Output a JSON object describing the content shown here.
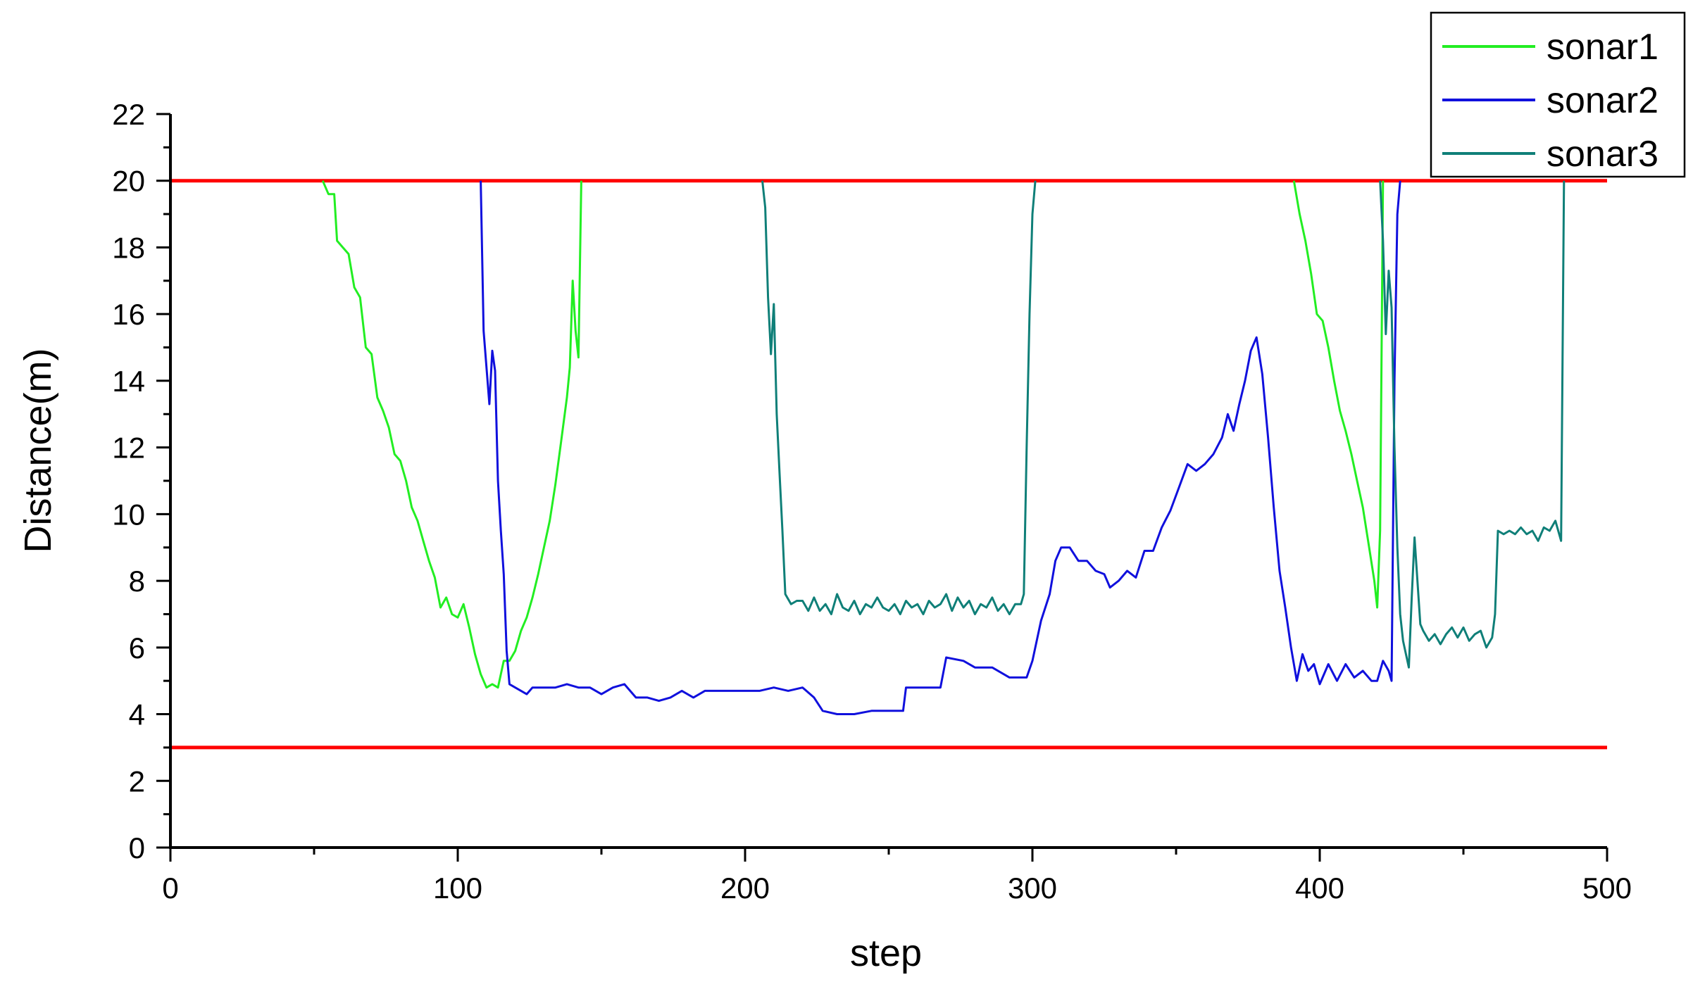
{
  "chart_data": {
    "type": "line",
    "title": "",
    "xlabel": "step",
    "ylabel": "Distance(m)",
    "xlim": [
      0,
      500
    ],
    "ylim": [
      0,
      22
    ],
    "xticks": [
      0,
      100,
      200,
      300,
      400,
      500
    ],
    "yticks": [
      0,
      2,
      4,
      6,
      8,
      10,
      12,
      14,
      16,
      18,
      20,
      22
    ],
    "grid": false,
    "legend_position": "top-right",
    "colors": {
      "sonar1": "#22ee22",
      "sonar2": "#1010dd",
      "sonar3": "#0f7f78",
      "threshold": "#ff0000"
    },
    "reference_lines": [
      {
        "y": 20,
        "color": "#ff0000"
      },
      {
        "y": 3,
        "color": "#ff0000"
      }
    ],
    "series": [
      {
        "name": "sonar1",
        "segments": [
          [
            [
              53,
              20
            ],
            [
              55,
              19.6
            ],
            [
              57,
              19.6
            ],
            [
              58,
              18.2
            ],
            [
              60,
              18.0
            ],
            [
              62,
              17.8
            ],
            [
              64,
              16.8
            ],
            [
              66,
              16.5
            ],
            [
              68,
              15.0
            ],
            [
              70,
              14.8
            ],
            [
              72,
              13.5
            ],
            [
              74,
              13.1
            ],
            [
              76,
              12.6
            ],
            [
              78,
              11.8
            ],
            [
              80,
              11.6
            ],
            [
              82,
              11.0
            ],
            [
              84,
              10.2
            ],
            [
              86,
              9.8
            ],
            [
              88,
              9.2
            ],
            [
              90,
              8.6
            ],
            [
              92,
              8.1
            ],
            [
              94,
              7.2
            ],
            [
              96,
              7.5
            ],
            [
              98,
              7.0
            ],
            [
              100,
              6.9
            ],
            [
              102,
              7.3
            ],
            [
              104,
              6.6
            ],
            [
              106,
              5.8
            ],
            [
              108,
              5.2
            ],
            [
              110,
              4.8
            ],
            [
              112,
              4.9
            ],
            [
              114,
              4.8
            ],
            [
              116,
              5.6
            ],
            [
              118,
              5.6
            ],
            [
              120,
              5.9
            ],
            [
              122,
              6.5
            ],
            [
              124,
              6.9
            ],
            [
              126,
              7.5
            ],
            [
              128,
              8.2
            ],
            [
              130,
              9.0
            ],
            [
              132,
              9.8
            ],
            [
              134,
              10.9
            ],
            [
              136,
              12.2
            ],
            [
              138,
              13.5
            ],
            [
              139,
              14.4
            ],
            [
              140,
              17.0
            ],
            [
              141,
              15.5
            ],
            [
              142,
              14.7
            ],
            [
              143,
              20
            ]
          ],
          [
            [
              391,
              20
            ],
            [
              393,
              19.0
            ],
            [
              395,
              18.2
            ],
            [
              397,
              17.2
            ],
            [
              399,
              16.0
            ],
            [
              401,
              15.8
            ],
            [
              403,
              15.0
            ],
            [
              405,
              14.0
            ],
            [
              407,
              13.1
            ],
            [
              409,
              12.5
            ],
            [
              411,
              11.8
            ],
            [
              413,
              11.0
            ],
            [
              415,
              10.2
            ],
            [
              417,
              9.1
            ],
            [
              419,
              8.0
            ],
            [
              420,
              7.2
            ],
            [
              421,
              9.5
            ],
            [
              422,
              20
            ]
          ]
        ]
      },
      {
        "name": "sonar2",
        "segments": [
          [
            [
              108,
              20
            ],
            [
              109,
              15.5
            ],
            [
              111,
              13.3
            ],
            [
              112,
              14.9
            ],
            [
              113,
              14.3
            ],
            [
              114,
              11.0
            ],
            [
              115,
              9.5
            ],
            [
              116,
              8.2
            ],
            [
              117,
              5.9
            ],
            [
              118,
              4.9
            ],
            [
              120,
              4.8
            ],
            [
              124,
              4.6
            ],
            [
              126,
              4.8
            ],
            [
              130,
              4.8
            ],
            [
              134,
              4.8
            ],
            [
              138,
              4.9
            ],
            [
              142,
              4.8
            ],
            [
              146,
              4.8
            ],
            [
              150,
              4.6
            ],
            [
              154,
              4.8
            ],
            [
              158,
              4.9
            ],
            [
              162,
              4.5
            ],
            [
              166,
              4.5
            ],
            [
              170,
              4.4
            ],
            [
              174,
              4.5
            ],
            [
              178,
              4.7
            ],
            [
              182,
              4.5
            ],
            [
              186,
              4.7
            ],
            [
              190,
              4.7
            ],
            [
              195,
              4.7
            ],
            [
              200,
              4.7
            ],
            [
              205,
              4.7
            ],
            [
              210,
              4.8
            ],
            [
              215,
              4.7
            ],
            [
              220,
              4.8
            ],
            [
              224,
              4.5
            ],
            [
              227,
              4.1
            ],
            [
              232,
              4.0
            ],
            [
              238,
              4.0
            ],
            [
              244,
              4.1
            ],
            [
              250,
              4.1
            ],
            [
              255,
              4.1
            ],
            [
              256,
              4.8
            ],
            [
              262,
              4.8
            ],
            [
              268,
              4.8
            ],
            [
              270,
              5.7
            ],
            [
              276,
              5.6
            ],
            [
              280,
              5.4
            ],
            [
              286,
              5.4
            ],
            [
              292,
              5.1
            ],
            [
              298,
              5.1
            ],
            [
              300,
              5.6
            ],
            [
              303,
              6.8
            ],
            [
              306,
              7.6
            ],
            [
              308,
              8.6
            ],
            [
              310,
              9.0
            ],
            [
              313,
              9.0
            ],
            [
              316,
              8.6
            ],
            [
              319,
              8.6
            ],
            [
              322,
              8.3
            ],
            [
              325,
              8.2
            ],
            [
              327,
              7.8
            ],
            [
              330,
              8.0
            ],
            [
              333,
              8.3
            ],
            [
              336,
              8.1
            ],
            [
              339,
              8.9
            ],
            [
              342,
              8.9
            ],
            [
              345,
              9.6
            ],
            [
              348,
              10.1
            ],
            [
              351,
              10.8
            ],
            [
              354,
              11.5
            ],
            [
              357,
              11.3
            ],
            [
              360,
              11.5
            ],
            [
              363,
              11.8
            ],
            [
              366,
              12.3
            ],
            [
              368,
              13.0
            ],
            [
              370,
              12.5
            ],
            [
              372,
              13.3
            ],
            [
              374,
              14.0
            ],
            [
              376,
              14.9
            ],
            [
              378,
              15.3
            ],
            [
              380,
              14.2
            ],
            [
              382,
              12.3
            ],
            [
              384,
              10.2
            ],
            [
              386,
              8.3
            ],
            [
              388,
              7.2
            ],
            [
              390,
              6.0
            ],
            [
              392,
              5.0
            ],
            [
              394,
              5.8
            ],
            [
              396,
              5.3
            ],
            [
              398,
              5.5
            ],
            [
              400,
              4.9
            ],
            [
              403,
              5.5
            ],
            [
              406,
              5.0
            ],
            [
              409,
              5.5
            ],
            [
              412,
              5.1
            ],
            [
              415,
              5.3
            ],
            [
              418,
              5.0
            ],
            [
              420,
              5.0
            ],
            [
              422,
              5.6
            ],
            [
              424,
              5.3
            ],
            [
              425,
              5.0
            ],
            [
              426,
              14.0
            ],
            [
              427,
              19.0
            ],
            [
              428,
              20
            ]
          ]
        ]
      },
      {
        "name": "sonar3",
        "segments": [
          [
            [
              206,
              20
            ],
            [
              207,
              19.2
            ],
            [
              208,
              16.5
            ],
            [
              209,
              14.8
            ],
            [
              210,
              16.3
            ],
            [
              211,
              13.0
            ],
            [
              212,
              11.2
            ],
            [
              213,
              9.5
            ],
            [
              214,
              7.6
            ],
            [
              216,
              7.3
            ],
            [
              218,
              7.4
            ],
            [
              220,
              7.4
            ],
            [
              222,
              7.1
            ],
            [
              224,
              7.5
            ],
            [
              226,
              7.1
            ],
            [
              228,
              7.3
            ],
            [
              230,
              7.0
            ],
            [
              232,
              7.6
            ],
            [
              234,
              7.2
            ],
            [
              236,
              7.1
            ],
            [
              238,
              7.4
            ],
            [
              240,
              7.0
            ],
            [
              242,
              7.3
            ],
            [
              244,
              7.2
            ],
            [
              246,
              7.5
            ],
            [
              248,
              7.2
            ],
            [
              250,
              7.1
            ],
            [
              252,
              7.3
            ],
            [
              254,
              7.0
            ],
            [
              256,
              7.4
            ],
            [
              258,
              7.2
            ],
            [
              260,
              7.3
            ],
            [
              262,
              7.0
            ],
            [
              264,
              7.4
            ],
            [
              266,
              7.2
            ],
            [
              268,
              7.3
            ],
            [
              270,
              7.6
            ],
            [
              272,
              7.1
            ],
            [
              274,
              7.5
            ],
            [
              276,
              7.2
            ],
            [
              278,
              7.4
            ],
            [
              280,
              7.0
            ],
            [
              282,
              7.3
            ],
            [
              284,
              7.2
            ],
            [
              286,
              7.5
            ],
            [
              288,
              7.1
            ],
            [
              290,
              7.3
            ],
            [
              292,
              7.0
            ],
            [
              294,
              7.3
            ],
            [
              296,
              7.3
            ],
            [
              297,
              7.6
            ],
            [
              298,
              12.0
            ],
            [
              299,
              16.0
            ],
            [
              300,
              19.0
            ],
            [
              301,
              20
            ]
          ],
          [
            [
              421,
              20
            ],
            [
              422,
              18.2
            ],
            [
              423,
              15.4
            ],
            [
              424,
              17.3
            ],
            [
              425,
              16.2
            ],
            [
              426,
              12.0
            ],
            [
              427,
              9.0
            ],
            [
              428,
              7.0
            ],
            [
              429,
              6.2
            ],
            [
              430,
              5.8
            ],
            [
              431,
              5.4
            ],
            [
              432,
              7.5
            ],
            [
              433,
              9.3
            ],
            [
              434,
              8.0
            ],
            [
              435,
              6.7
            ],
            [
              436,
              6.5
            ],
            [
              438,
              6.2
            ],
            [
              440,
              6.4
            ],
            [
              442,
              6.1
            ],
            [
              444,
              6.4
            ],
            [
              446,
              6.6
            ],
            [
              448,
              6.3
            ],
            [
              450,
              6.6
            ],
            [
              452,
              6.2
            ],
            [
              454,
              6.4
            ],
            [
              456,
              6.5
            ],
            [
              458,
              6.0
            ],
            [
              460,
              6.3
            ],
            [
              461,
              7.0
            ],
            [
              462,
              9.5
            ],
            [
              464,
              9.4
            ],
            [
              466,
              9.5
            ],
            [
              468,
              9.4
            ],
            [
              470,
              9.6
            ],
            [
              472,
              9.4
            ],
            [
              474,
              9.5
            ],
            [
              476,
              9.2
            ],
            [
              478,
              9.6
            ],
            [
              480,
              9.5
            ],
            [
              482,
              9.8
            ],
            [
              484,
              9.2
            ],
            [
              485,
              20
            ]
          ]
        ]
      }
    ]
  }
}
